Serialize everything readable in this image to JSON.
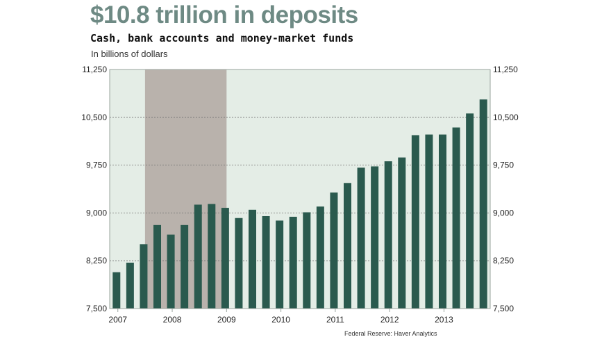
{
  "header": {
    "title": "$10.8 trillion in deposits",
    "subtitle": "Cash, bank accounts and money-market funds",
    "units": "In billions of dollars"
  },
  "source": "Federal Reserve: Haver Analytics",
  "colors": {
    "bar": "#2a5a4e",
    "plot_background": "#e4ede6",
    "recession_band": "#b9b2ac",
    "title": "#6e8a84"
  },
  "chart_data": {
    "type": "bar",
    "title": "$10.8 trillion in deposits",
    "subtitle": "Cash, bank accounts and money-market funds",
    "ylabel": "In billions of dollars",
    "ylim": [
      7500,
      11250
    ],
    "y_ticks": [
      "7,500",
      "8,250",
      "9,000",
      "9,750",
      "10,500",
      "11,250"
    ],
    "x_tick_labels": [
      "2007",
      "2008",
      "2009",
      "2010",
      "2011",
      "2012",
      "2013"
    ],
    "grid": true,
    "recession_shading": {
      "start_index": 2.6,
      "end_index": 8.6
    },
    "series": [
      {
        "name": "Deposits",
        "values": [
          8070,
          8220,
          8510,
          8810,
          8660,
          8810,
          9130,
          9140,
          9080,
          8920,
          9050,
          8950,
          8880,
          8940,
          9010,
          9100,
          9320,
          9470,
          9710,
          9730,
          9810,
          9870,
          10220,
          10230,
          10230,
          10340,
          10560,
          10780
        ]
      }
    ]
  }
}
